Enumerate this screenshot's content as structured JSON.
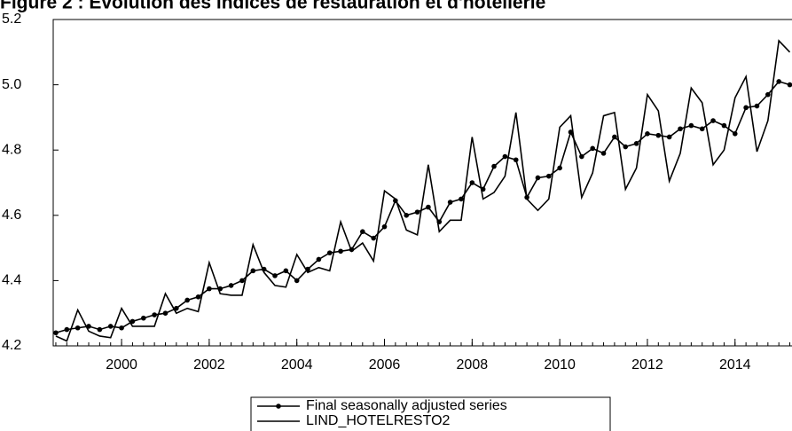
{
  "chart_data": {
    "type": "line",
    "title": "Figure 2 : Evolution des indices de restauration et d'hôtellerie",
    "x": [
      1998.5,
      1998.75,
      1999,
      1999.25,
      1999.5,
      1999.75,
      2000,
      2000.25,
      2000.5,
      2000.75,
      2001,
      2001.25,
      2001.5,
      2001.75,
      2002,
      2002.25,
      2002.5,
      2002.75,
      2003,
      2003.25,
      2003.5,
      2003.75,
      2004,
      2004.25,
      2004.5,
      2004.75,
      2005,
      2005.25,
      2005.5,
      2005.75,
      2006,
      2006.25,
      2006.5,
      2006.75,
      2007,
      2007.25,
      2007.5,
      2007.75,
      2008,
      2008.25,
      2008.5,
      2008.75,
      2009,
      2009.25,
      2009.5,
      2009.75,
      2010,
      2010.25,
      2010.5,
      2010.75,
      2011,
      2011.25,
      2011.5,
      2011.75,
      2012,
      2012.25,
      2012.5,
      2012.75,
      2013,
      2013.25,
      2013.5,
      2013.75,
      2014,
      2014.25,
      2014.5,
      2014.75,
      2015,
      2015.25
    ],
    "series": [
      {
        "name": "Final seasonally adjusted series",
        "color": "#000000",
        "markers": true,
        "values": [
          4.24,
          4.25,
          4.255,
          4.26,
          4.25,
          4.26,
          4.255,
          4.275,
          4.285,
          4.295,
          4.3,
          4.315,
          4.34,
          4.35,
          4.375,
          4.375,
          4.385,
          4.4,
          4.43,
          4.435,
          4.415,
          4.43,
          4.4,
          4.435,
          4.465,
          4.485,
          4.49,
          4.495,
          4.55,
          4.53,
          4.565,
          4.645,
          4.6,
          4.61,
          4.625,
          4.58,
          4.64,
          4.65,
          4.7,
          4.68,
          4.75,
          4.78,
          4.77,
          4.655,
          4.715,
          4.72,
          4.745,
          4.855,
          4.78,
          4.805,
          4.79,
          4.84,
          4.81,
          4.82,
          4.85,
          4.845,
          4.84,
          4.865,
          4.875,
          4.865,
          4.89,
          4.875,
          4.85,
          4.93,
          4.935,
          4.97,
          5.01,
          5.0
        ]
      },
      {
        "name": "LIND_HOTELRESTO2",
        "color": "#000000",
        "markers": false,
        "values": [
          4.23,
          4.215,
          4.31,
          4.245,
          4.23,
          4.225,
          4.315,
          4.26,
          4.26,
          4.26,
          4.36,
          4.3,
          4.315,
          4.305,
          4.455,
          4.36,
          4.355,
          4.355,
          4.51,
          4.425,
          4.385,
          4.38,
          4.48,
          4.425,
          4.44,
          4.43,
          4.58,
          4.49,
          4.515,
          4.46,
          4.675,
          4.65,
          4.555,
          4.54,
          4.755,
          4.55,
          4.585,
          4.585,
          4.84,
          4.65,
          4.67,
          4.72,
          4.915,
          4.65,
          4.615,
          4.65,
          4.87,
          4.905,
          4.655,
          4.73,
          4.905,
          4.915,
          4.68,
          4.745,
          4.97,
          4.92,
          4.705,
          4.79,
          4.99,
          4.945,
          4.755,
          4.8,
          4.96,
          5.025,
          4.795,
          4.89,
          5.135,
          5.1
        ]
      }
    ],
    "xlim": [
      1998.44,
      2015.3
    ],
    "xticks": [
      2000,
      2002,
      2004,
      2006,
      2008,
      2010,
      2012,
      2014
    ],
    "ylim": [
      4.2,
      5.2
    ],
    "yticks": [
      4.2,
      4.4,
      4.6,
      4.8,
      {
        "value": 5.0,
        "label": "5.0"
      },
      5.2
    ]
  }
}
